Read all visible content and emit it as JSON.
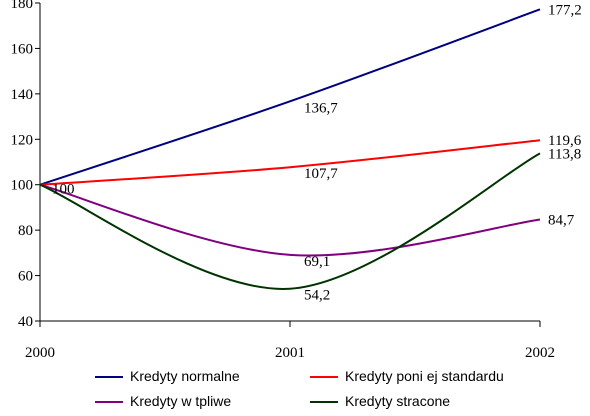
{
  "chart_data": {
    "type": "line",
    "x": [
      "2000",
      "2001",
      "2002"
    ],
    "ylim": [
      40,
      180
    ],
    "yticks": [
      40,
      60,
      80,
      100,
      120,
      140,
      160,
      180
    ],
    "grid": false,
    "legend_position": "bottom",
    "series": [
      {
        "name": "Kredyty normalne",
        "color": "#000080",
        "values": [
          100,
          136.7,
          177.2
        ],
        "labels": [
          "",
          "136,7",
          "177,2"
        ]
      },
      {
        "name": "Kredyty poni ej standardu",
        "color": "#ff0000",
        "values": [
          100,
          107.7,
          119.6
        ],
        "labels": [
          "",
          "107,7",
          "119,6"
        ]
      },
      {
        "name": "Kredyty w tpliwe",
        "color": "#800080",
        "values": [
          100,
          69.1,
          84.7
        ],
        "labels": [
          "",
          "69,1",
          "84,7"
        ]
      },
      {
        "name": "Kredyty stracone",
        "color": "#003300",
        "values": [
          100,
          54.2,
          113.8
        ],
        "labels": [
          "",
          "54,2",
          "113,8"
        ]
      }
    ],
    "origin_label": "100"
  }
}
